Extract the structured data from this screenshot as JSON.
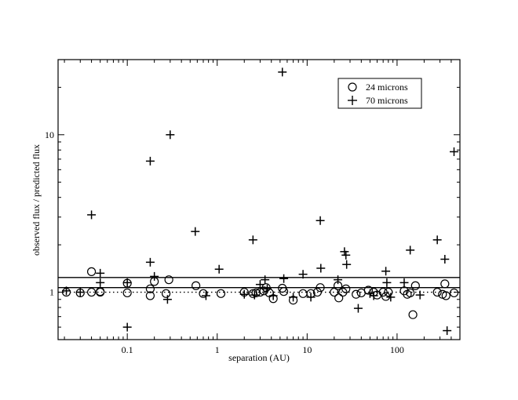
{
  "chart_data": {
    "type": "scatter",
    "xlabel": "separation (AU)",
    "ylabel": "observed flux / predicted flux",
    "xscale": "log",
    "yscale": "log",
    "xlim": [
      0.017,
      500
    ],
    "ylim": [
      0.5,
      30
    ],
    "x_ticks": [
      0.1,
      1,
      10,
      100
    ],
    "x_tick_labels": [
      "0.1",
      "1",
      "10",
      "100"
    ],
    "y_ticks": [
      1,
      10
    ],
    "y_tick_labels": [
      "1",
      "10"
    ],
    "grid": false,
    "legend_position": "top-right",
    "reference_lines": [
      {
        "y": 1.0,
        "style": "dotted"
      },
      {
        "y": 1.07,
        "style": "solid"
      },
      {
        "y": 1.24,
        "style": "solid"
      }
    ],
    "series": [
      {
        "name": "24 microns",
        "marker": "circle",
        "points": [
          [
            0.021,
            1.0
          ],
          [
            0.03,
            0.99
          ],
          [
            0.04,
            1.35
          ],
          [
            0.04,
            1.0
          ],
          [
            0.05,
            1.0
          ],
          [
            0.05,
            1.01
          ],
          [
            0.1,
            0.99
          ],
          [
            0.1,
            1.14
          ],
          [
            0.18,
            0.95
          ],
          [
            0.18,
            1.05
          ],
          [
            0.2,
            1.17
          ],
          [
            0.27,
            0.98
          ],
          [
            0.29,
            1.2
          ],
          [
            0.58,
            1.1
          ],
          [
            0.7,
            0.98
          ],
          [
            1.1,
            0.98
          ],
          [
            2.0,
            1.0
          ],
          [
            2.5,
            0.98
          ],
          [
            2.7,
            0.99
          ],
          [
            3.0,
            1.0
          ],
          [
            3.3,
            1.02
          ],
          [
            3.5,
            1.07
          ],
          [
            3.8,
            0.99
          ],
          [
            4.2,
            0.91
          ],
          [
            5.3,
            1.06
          ],
          [
            5.5,
            1.01
          ],
          [
            7.0,
            0.89
          ],
          [
            9.0,
            0.98
          ],
          [
            11.0,
            0.98
          ],
          [
            13.0,
            1.0
          ],
          [
            14.0,
            1.07
          ],
          [
            20.0,
            1.0
          ],
          [
            22.0,
            1.1
          ],
          [
            22.5,
            0.92
          ],
          [
            25.0,
            1.0
          ],
          [
            27.0,
            1.05
          ],
          [
            35.0,
            0.97
          ],
          [
            40.0,
            0.99
          ],
          [
            48.0,
            1.03
          ],
          [
            55.0,
            1.0
          ],
          [
            60.0,
            0.96
          ],
          [
            70.0,
            1.0
          ],
          [
            75.0,
            0.94
          ],
          [
            80.0,
            1.0
          ],
          [
            120.0,
            1.02
          ],
          [
            130.0,
            0.97
          ],
          [
            140.0,
            0.99
          ],
          [
            150.0,
            0.72
          ],
          [
            160.0,
            1.1
          ],
          [
            280.0,
            1.0
          ],
          [
            320.0,
            0.97
          ],
          [
            340.0,
            1.13
          ],
          [
            350.0,
            0.95
          ],
          [
            430.0,
            0.99
          ]
        ]
      },
      {
        "name": "70 microns",
        "marker": "plus",
        "points": [
          [
            0.021,
            1.02
          ],
          [
            0.03,
            1.0
          ],
          [
            0.04,
            3.1
          ],
          [
            0.05,
            1.32
          ],
          [
            0.05,
            1.15
          ],
          [
            0.1,
            0.6
          ],
          [
            0.1,
            1.15
          ],
          [
            0.18,
            6.8
          ],
          [
            0.18,
            1.55
          ],
          [
            0.2,
            1.26
          ],
          [
            0.28,
            0.9
          ],
          [
            0.3,
            10.0
          ],
          [
            0.57,
            2.43
          ],
          [
            0.75,
            0.95
          ],
          [
            1.05,
            1.4
          ],
          [
            2.0,
            0.97
          ],
          [
            2.5,
            2.15
          ],
          [
            2.6,
            0.96
          ],
          [
            3.0,
            1.12
          ],
          [
            3.4,
            1.2
          ],
          [
            3.6,
            1.05
          ],
          [
            4.2,
            0.95
          ],
          [
            5.3,
            25.0
          ],
          [
            5.5,
            1.22
          ],
          [
            7.0,
            0.93
          ],
          [
            9.0,
            1.3
          ],
          [
            11.0,
            0.93
          ],
          [
            14.0,
            2.85
          ],
          [
            14.2,
            1.42
          ],
          [
            22.0,
            1.2
          ],
          [
            26.0,
            1.81
          ],
          [
            27.0,
            1.72
          ],
          [
            27.5,
            1.5
          ],
          [
            37.0,
            0.79
          ],
          [
            50.0,
            0.98
          ],
          [
            55.0,
            0.95
          ],
          [
            75.0,
            1.36
          ],
          [
            77.0,
            1.15
          ],
          [
            85.0,
            0.93
          ],
          [
            120.0,
            1.15
          ],
          [
            140.0,
            1.85
          ],
          [
            180.0,
            0.96
          ],
          [
            280.0,
            2.15
          ],
          [
            340.0,
            1.62
          ],
          [
            360.0,
            0.57
          ],
          [
            430.0,
            7.8
          ]
        ]
      }
    ]
  }
}
